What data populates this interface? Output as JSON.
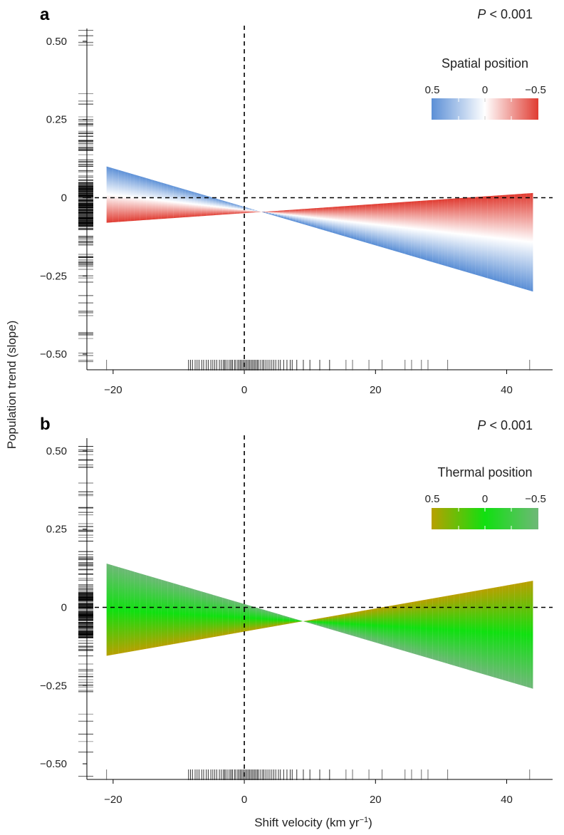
{
  "figure": {
    "y_axis_label": "Population trend (slope)",
    "x_axis_label": "Shift velocity (km yr",
    "x_axis_label_sup": "−1",
    "x_axis_label_end": ")"
  },
  "chart_data": [
    {
      "type": "area",
      "panel": "a",
      "p_value_prefix": "P",
      "p_value_rest": " < 0.001",
      "xlim": [
        -24,
        47
      ],
      "ylim": [
        -0.55,
        0.55
      ],
      "x_ticks": [
        -20,
        0,
        20,
        40
      ],
      "x_tick_labels": [
        "−20",
        "0",
        "20",
        "40"
      ],
      "y_ticks": [
        0.5,
        0.25,
        0,
        -0.25,
        -0.5
      ],
      "y_tick_labels": [
        "0.50",
        "0.25",
        "0",
        "−0.25",
        "−0.50"
      ],
      "reference_lines": {
        "x": 0,
        "y": 0
      },
      "legend": {
        "title": "Spatial position",
        "tick_labels": [
          "0.5",
          "0",
          "−0.5"
        ],
        "colors": [
          "#5b8fd6",
          "#ffffff",
          "#e03c32"
        ]
      },
      "series": [
        {
          "name": "Spatial position 0.5",
          "color": "#5b8fd6",
          "x": [
            -21,
            44
          ],
          "y": [
            0.1,
            -0.3
          ]
        },
        {
          "name": "Spatial position −0.5",
          "color": "#e03c32",
          "x": [
            -21,
            44
          ],
          "y": [
            -0.08,
            0.015
          ]
        }
      ],
      "x_rug": [
        -21,
        -8.5,
        -8.2,
        -7.9,
        -7.5,
        -7.2,
        -6.9,
        -6.5,
        -6.2,
        -5.8,
        -5.5,
        -5.1,
        -4.8,
        -4.5,
        -4.2,
        -3.8,
        -3.5,
        -3.2,
        -3.0,
        -2.8,
        -2.5,
        -2.2,
        -2.0,
        -1.8,
        -1.5,
        -1.3,
        -1.0,
        -0.8,
        -0.6,
        -0.4,
        -0.2,
        0.0,
        0.2,
        0.4,
        0.6,
        0.8,
        1.0,
        1.2,
        1.4,
        1.6,
        1.8,
        2.0,
        2.2,
        2.5,
        2.8,
        3.0,
        3.3,
        3.6,
        3.9,
        4.2,
        4.5,
        4.8,
        5.2,
        5.5,
        6.0,
        6.5,
        7.0,
        7.3,
        8.0,
        9.0,
        10.0,
        11.5,
        13.0,
        15.5,
        16.5,
        19.0,
        21.0,
        24.5,
        25.5,
        27.0,
        28.0,
        31.0,
        43.5
      ],
      "y_rug": "dense marks between −0.52 and 0.55"
    },
    {
      "type": "area",
      "panel": "b",
      "p_value_prefix": "P",
      "p_value_rest": " < 0.001",
      "xlim": [
        -24,
        47
      ],
      "ylim": [
        -0.55,
        0.55
      ],
      "x_ticks": [
        -20,
        0,
        20,
        40
      ],
      "x_tick_labels": [
        "−20",
        "0",
        "20",
        "40"
      ],
      "y_ticks": [
        0.5,
        0.25,
        0,
        -0.25,
        -0.5
      ],
      "y_tick_labels": [
        "0.50",
        "0.25",
        "0",
        "−0.25",
        "−0.50"
      ],
      "reference_lines": {
        "x": 0,
        "y": 0
      },
      "legend": {
        "title": "Thermal position",
        "tick_labels": [
          "0.5",
          "0",
          "−0.5"
        ],
        "colors": [
          "#b8a000",
          "#10e010",
          "#6fb878"
        ]
      },
      "series": [
        {
          "name": "Thermal position 0.5",
          "color": "#b8a000",
          "x": [
            -21,
            44
          ],
          "y": [
            -0.155,
            0.085
          ]
        },
        {
          "name": "Thermal position −0.5",
          "color": "#6fb878",
          "x": [
            -21,
            44
          ],
          "y": [
            0.14,
            -0.26
          ]
        }
      ],
      "x_rug": [
        -21,
        -8.5,
        -8.2,
        -7.9,
        -7.5,
        -7.2,
        -6.9,
        -6.5,
        -6.2,
        -5.8,
        -5.5,
        -5.1,
        -4.8,
        -4.5,
        -4.2,
        -3.8,
        -3.5,
        -3.2,
        -3.0,
        -2.8,
        -2.5,
        -2.2,
        -2.0,
        -1.8,
        -1.5,
        -1.3,
        -1.0,
        -0.8,
        -0.6,
        -0.4,
        -0.2,
        0.0,
        0.2,
        0.4,
        0.6,
        0.8,
        1.0,
        1.2,
        1.4,
        1.6,
        1.8,
        2.0,
        2.2,
        2.5,
        2.8,
        3.0,
        3.3,
        3.6,
        3.9,
        4.2,
        4.5,
        4.8,
        5.2,
        5.5,
        6.0,
        6.5,
        7.0,
        7.3,
        8.0,
        9.0,
        10.0,
        11.5,
        13.0,
        15.5,
        16.5,
        19.0,
        21.0,
        24.5,
        25.5,
        27.0,
        28.0,
        31.0,
        43.5
      ],
      "y_rug": "dense marks between −0.52 and 0.55"
    }
  ]
}
